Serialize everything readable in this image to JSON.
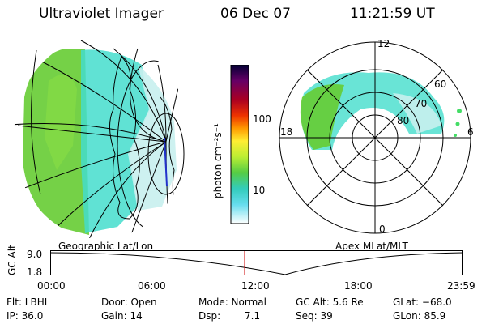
{
  "header": {
    "instrument": "Ultraviolet Imager",
    "date": "06 Dec 07",
    "time": "11:21:59 UT"
  },
  "colors": {
    "uv_green": "#66cc33",
    "uv_cyan": "#44ddcc",
    "uv_pale": "#c8f0ee",
    "alt_marker": "#cc0000",
    "lines": "#000000"
  },
  "geo_panel": {
    "label": "Geographic Lat/Lon",
    "icon": "globe-icon"
  },
  "colorbar": {
    "unit_label": "photon cm⁻²s⁻¹",
    "ticks": [
      "100",
      "10"
    ],
    "colors": [
      "#000033",
      "#3a0050",
      "#660066",
      "#880033",
      "#bb0000",
      "#ee3300",
      "#ff8800",
      "#ffcc00",
      "#ffff33",
      "#ccff33",
      "#66dd33",
      "#33cc66",
      "#33ccbb",
      "#55ddee",
      "#aaeeee",
      "#ffffff"
    ]
  },
  "polar_panel": {
    "label": "Apex MLat/MLT",
    "mlt_labels": {
      "top": "12",
      "left": "18",
      "right": "6",
      "bottom": "0"
    },
    "lat_labels": [
      "60",
      "70",
      "80"
    ]
  },
  "altitude_plot": {
    "ylabel": "GC Alt",
    "yticks": [
      "9.0",
      "1.8"
    ],
    "xticks": [
      "00:00",
      "06:00",
      "12:00",
      "18:00",
      "23:59"
    ]
  },
  "info": {
    "flt": "Flt: LBHL",
    "door": "Door: Open",
    "mode": "Mode: Normal",
    "gc_alt": "GC Alt: 5.6 Re",
    "glat": "GLat: −68.0",
    "ip": "IP: 36.0",
    "gain": "Gain: 14",
    "dsp_label": "Dsp:",
    "dsp_value": "7.1",
    "seq": "Seq: 39",
    "glon": "GLon: 85.9"
  }
}
